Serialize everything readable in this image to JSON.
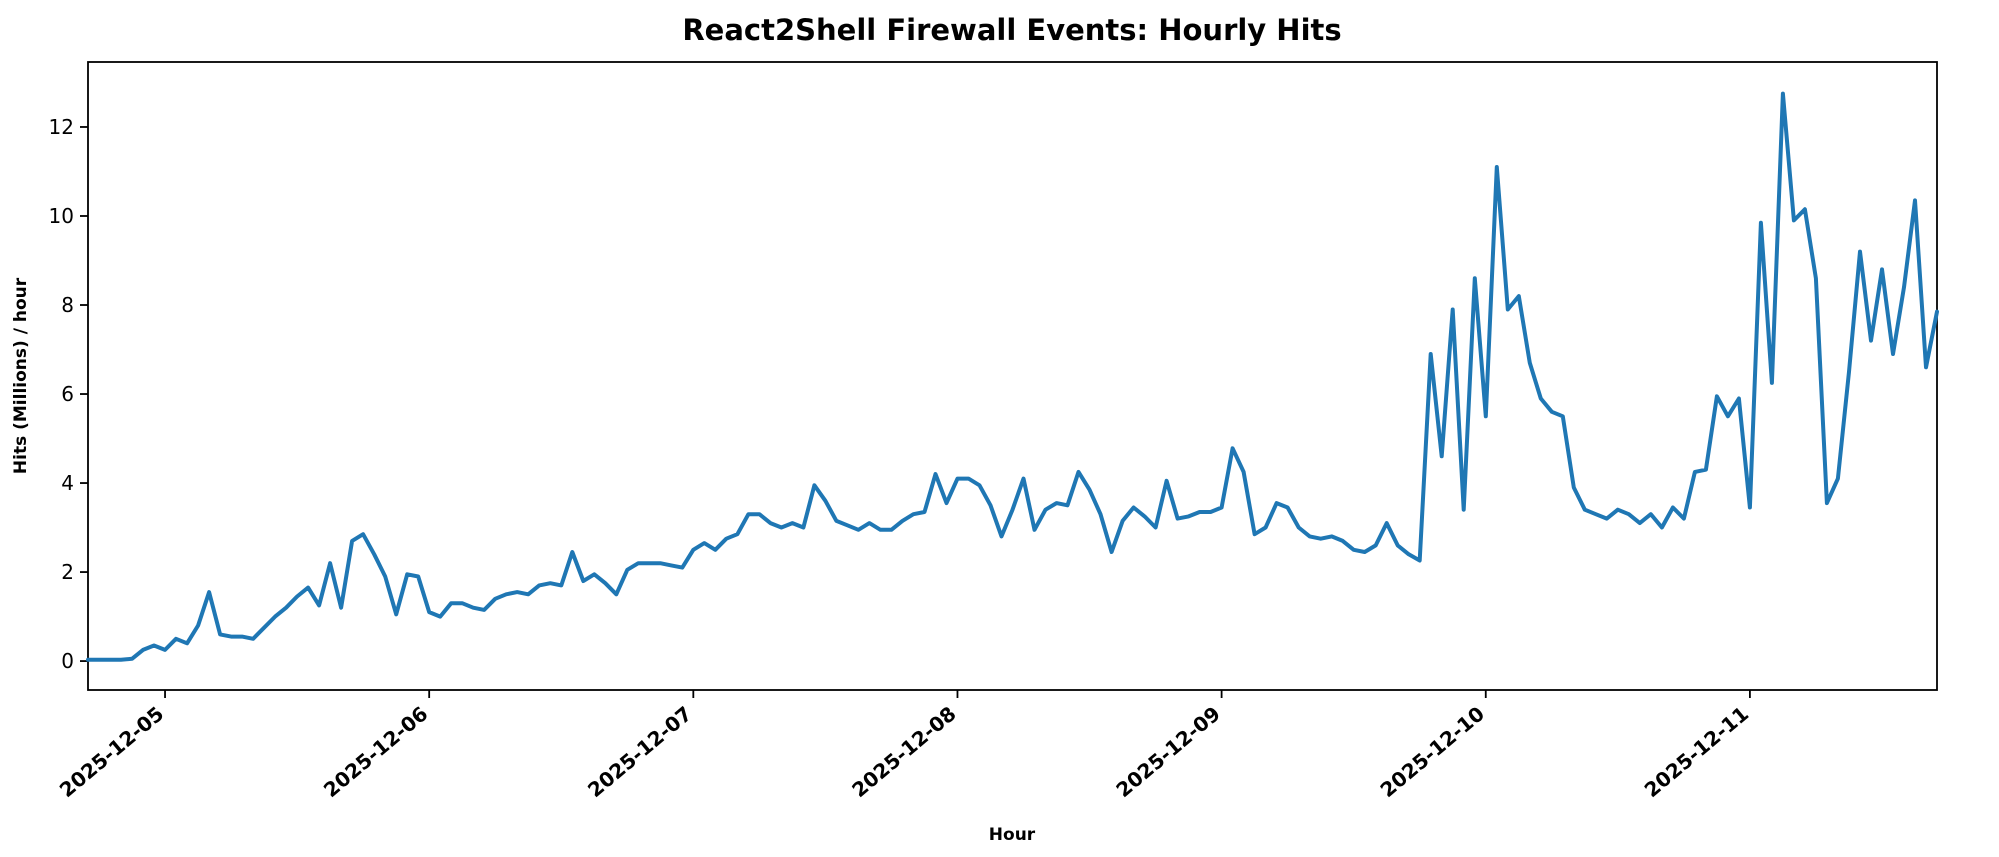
{
  "chart_data": {
    "type": "line",
    "title": "React2Shell Firewall Events: Hourly Hits",
    "xlabel": "Hour",
    "ylabel": "Hits (Millions) / hour",
    "line_color": "#1f77b4",
    "line_width": 4,
    "background_color": "#ffffff",
    "grid": false,
    "legend": null,
    "start": "2025-12-04 17:00",
    "step_hours": 1,
    "values": [
      0.03,
      0.03,
      0.03,
      0.03,
      0.05,
      0.25,
      0.35,
      0.25,
      0.5,
      0.4,
      0.8,
      1.55,
      0.6,
      0.55,
      0.55,
      0.5,
      0.75,
      1.0,
      1.2,
      1.45,
      1.65,
      1.25,
      2.2,
      1.2,
      2.7,
      2.85,
      2.4,
      1.9,
      1.05,
      1.95,
      1.9,
      1.1,
      1.0,
      1.3,
      1.3,
      1.2,
      1.15,
      1.4,
      1.5,
      1.55,
      1.5,
      1.7,
      1.75,
      1.7,
      2.45,
      1.8,
      1.95,
      1.75,
      1.5,
      2.05,
      2.2,
      2.2,
      2.2,
      2.15,
      2.1,
      2.5,
      2.65,
      2.5,
      2.75,
      2.85,
      3.3,
      3.3,
      3.1,
      3.0,
      3.1,
      3.0,
      3.95,
      3.6,
      3.15,
      3.05,
      2.95,
      3.1,
      2.95,
      2.95,
      3.15,
      3.3,
      3.35,
      4.2,
      3.55,
      4.1,
      4.1,
      3.95,
      3.5,
      2.8,
      3.4,
      4.1,
      2.95,
      3.4,
      3.55,
      3.5,
      4.25,
      3.85,
      3.3,
      2.45,
      3.15,
      3.45,
      3.25,
      3.0,
      4.05,
      3.2,
      3.25,
      3.35,
      3.35,
      3.45,
      4.78,
      4.25,
      2.85,
      3.0,
      3.55,
      3.45,
      3.0,
      2.8,
      2.75,
      2.8,
      2.7,
      2.5,
      2.45,
      2.6,
      3.1,
      2.6,
      2.4,
      2.26,
      6.9,
      4.6,
      7.9,
      3.4,
      8.6,
      5.5,
      11.1,
      7.9,
      8.2,
      6.7,
      5.9,
      5.6,
      5.5,
      3.9,
      3.4,
      3.3,
      3.2,
      3.4,
      3.3,
      3.1,
      3.3,
      3.0,
      3.45,
      3.2,
      4.25,
      4.3,
      5.95,
      5.5,
      5.9,
      3.45,
      9.85,
      6.25,
      12.75,
      9.9,
      10.15,
      8.6,
      3.55,
      4.1,
      6.5,
      9.2,
      7.2,
      8.8,
      6.9,
      8.4,
      10.35,
      6.6,
      7.85
    ],
    "x_ticks": [
      {
        "label": "2025-12-05",
        "hour": 7
      },
      {
        "label": "2025-12-06",
        "hour": 31
      },
      {
        "label": "2025-12-07",
        "hour": 55
      },
      {
        "label": "2025-12-08",
        "hour": 79
      },
      {
        "label": "2025-12-09",
        "hour": 103
      },
      {
        "label": "2025-12-10",
        "hour": 127
      },
      {
        "label": "2025-12-11",
        "hour": 151
      }
    ],
    "yticks": [
      0,
      2,
      4,
      6,
      8,
      10,
      12
    ],
    "xlim_hours": [
      0,
      168
    ],
    "ylim": [
      -0.65,
      13.46
    ],
    "x_tick_rotation_deg": 40
  }
}
